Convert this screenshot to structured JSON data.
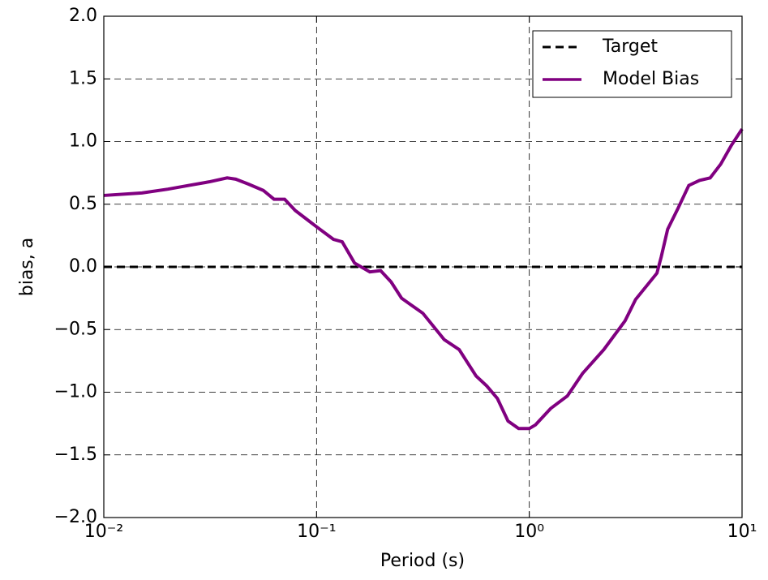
{
  "chart_data": {
    "type": "line",
    "xlabel": "Period (s)",
    "ylabel": "bias, a",
    "xscale": "log",
    "grid": true,
    "legend": "upper right",
    "xlim": [
      0.01,
      10
    ],
    "xticks": [
      {
        "value": 0.01,
        "label": "10⁻²"
      },
      {
        "value": 0.1,
        "label": "10⁻¹"
      },
      {
        "value": 1,
        "label": "10⁰"
      },
      {
        "value": 10,
        "label": "10¹"
      }
    ],
    "ylim": [
      -2,
      2
    ],
    "yticks": [
      {
        "value": -2,
        "label": "−2.0"
      },
      {
        "value": -1.5,
        "label": "−1.5"
      },
      {
        "value": -1,
        "label": "−1.0"
      },
      {
        "value": -0.5,
        "label": "−0.5"
      },
      {
        "value": 0,
        "label": "0.0"
      },
      {
        "value": 0.5,
        "label": "0.5"
      },
      {
        "value": 1,
        "label": "1.0"
      },
      {
        "value": 1.5,
        "label": "1.5"
      },
      {
        "value": 2,
        "label": "2.0"
      }
    ],
    "series": [
      {
        "name": "Target",
        "color": "#000000",
        "linestyle": "dashed",
        "x": [
          0.01,
          10
        ],
        "values": [
          0,
          0
        ]
      },
      {
        "name": "Model Bias",
        "color": "#800080",
        "linestyle": "solid",
        "x": [
          0.01,
          0.0151,
          0.02,
          0.0251,
          0.0316,
          0.038,
          0.0417,
          0.0479,
          0.0562,
          0.0631,
          0.0708,
          0.0794,
          0.1,
          0.12,
          0.132,
          0.151,
          0.178,
          0.2,
          0.224,
          0.251,
          0.316,
          0.398,
          0.468,
          0.562,
          0.631,
          0.708,
          0.794,
          0.891,
          1.0,
          1.07,
          1.26,
          1.51,
          1.78,
          2.24,
          2.82,
          3.16,
          3.98,
          4.17,
          4.47,
          5.01,
          5.62,
          6.31,
          7.08,
          7.94,
          8.91,
          10
        ],
        "values": [
          0.57,
          0.59,
          0.62,
          0.65,
          0.68,
          0.71,
          0.7,
          0.66,
          0.61,
          0.54,
          0.54,
          0.45,
          0.32,
          0.22,
          0.2,
          0.03,
          -0.04,
          -0.03,
          -0.12,
          -0.25,
          -0.37,
          -0.58,
          -0.66,
          -0.87,
          -0.95,
          -1.05,
          -1.23,
          -1.29,
          -1.29,
          -1.26,
          -1.13,
          -1.03,
          -0.85,
          -0.66,
          -0.43,
          -0.26,
          -0.05,
          0.08,
          0.3,
          0.47,
          0.65,
          0.69,
          0.71,
          0.82,
          0.97,
          1.1
        ]
      }
    ]
  }
}
